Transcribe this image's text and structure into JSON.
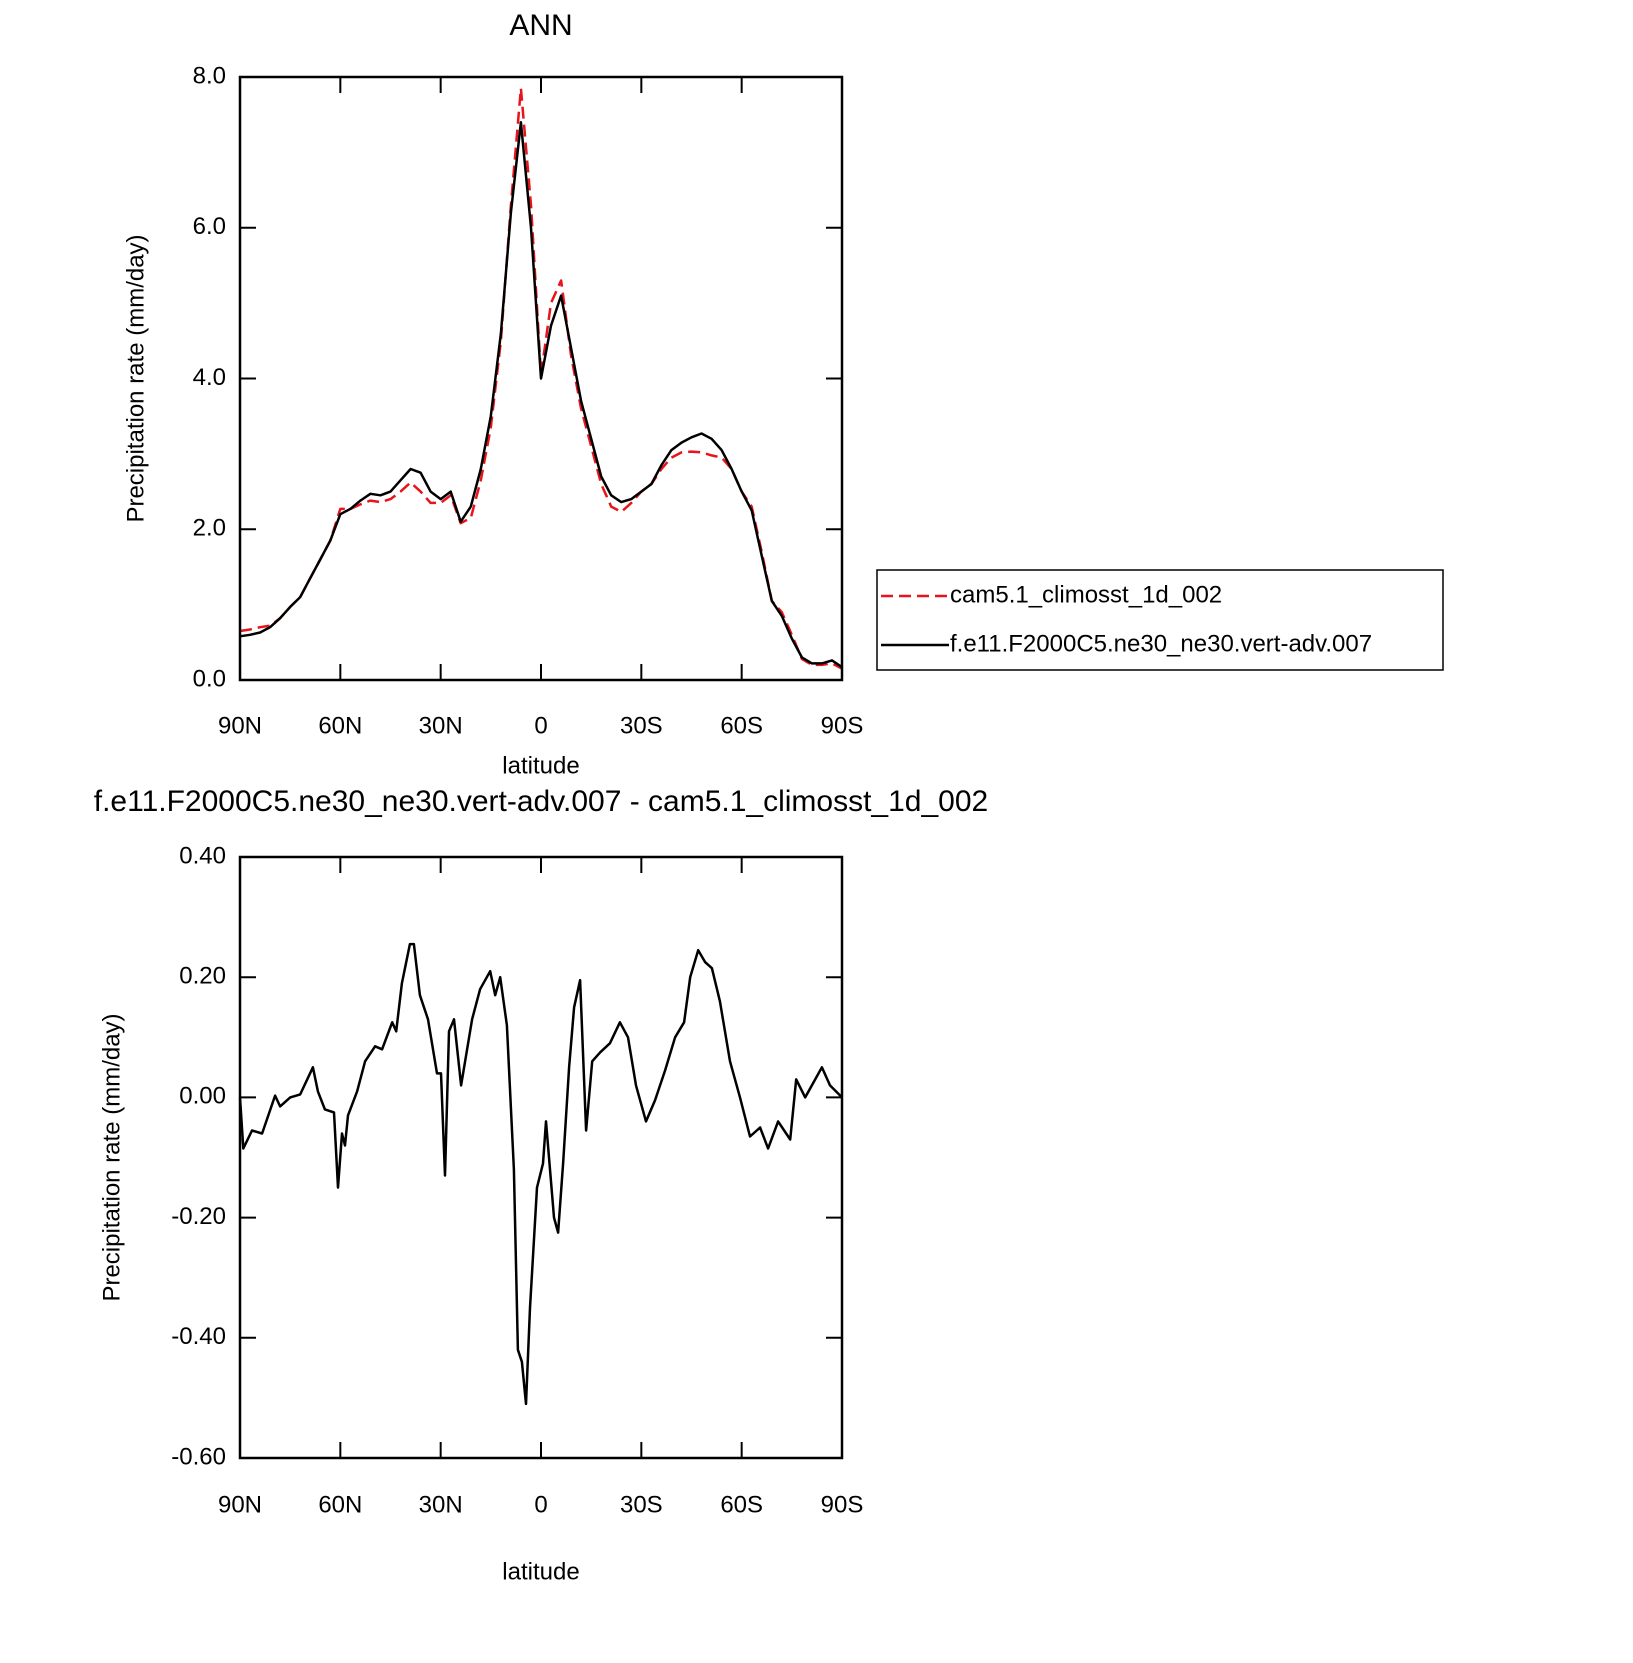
{
  "chart_data": [
    {
      "type": "line",
      "title": "ANN",
      "x_label": "latitude",
      "y_label": "Precipitation rate (mm/day)",
      "x": [
        90,
        87,
        84,
        81,
        78,
        75,
        72,
        69,
        66,
        63,
        60,
        57,
        54,
        51,
        48,
        45,
        42,
        39,
        36,
        33,
        30,
        27,
        24,
        21,
        18,
        15,
        12,
        9,
        6,
        3,
        0,
        -3,
        -6,
        -9,
        -12,
        -15,
        -18,
        -21,
        -24,
        -27,
        -30,
        -33,
        -36,
        -39,
        -42,
        -45,
        -48,
        -51,
        -54,
        -57,
        -60,
        -63,
        -66,
        -69,
        -72,
        -75,
        -78,
        -81,
        -84,
        -87,
        -90
      ],
      "series": [
        {
          "name": "cam5.1_climosst_1d_002",
          "color": "#e8141b",
          "linestyle": "dashed",
          "values": [
            0.65,
            0.67,
            0.7,
            0.72,
            0.82,
            0.97,
            1.1,
            1.35,
            1.6,
            1.85,
            2.27,
            2.27,
            2.33,
            2.38,
            2.36,
            2.4,
            2.5,
            2.62,
            2.5,
            2.35,
            2.35,
            2.45,
            2.08,
            2.15,
            2.65,
            3.35,
            4.5,
            6.3,
            7.85,
            6.3,
            4.05,
            5.0,
            5.3,
            4.3,
            3.6,
            3.1,
            2.6,
            2.3,
            2.23,
            2.35,
            2.5,
            2.6,
            2.8,
            2.95,
            3.02,
            3.03,
            3.02,
            2.98,
            2.95,
            2.8,
            2.5,
            2.3,
            1.7,
            1.05,
            0.9,
            0.6,
            0.28,
            0.2,
            0.2,
            0.22,
            0.15
          ]
        },
        {
          "name": "f.e11.F2000C5.ne30_ne30.vert-adv.007",
          "color": "#000000",
          "linestyle": "solid",
          "values": [
            0.58,
            0.6,
            0.63,
            0.7,
            0.82,
            0.97,
            1.1,
            1.35,
            1.6,
            1.85,
            2.2,
            2.27,
            2.38,
            2.47,
            2.45,
            2.5,
            2.65,
            2.8,
            2.75,
            2.5,
            2.4,
            2.5,
            2.1,
            2.3,
            2.8,
            3.5,
            4.6,
            6.2,
            7.4,
            6.0,
            4.0,
            4.7,
            5.1,
            4.4,
            3.7,
            3.2,
            2.7,
            2.45,
            2.36,
            2.4,
            2.5,
            2.6,
            2.85,
            3.05,
            3.15,
            3.22,
            3.27,
            3.2,
            3.05,
            2.8,
            2.5,
            2.25,
            1.65,
            1.05,
            0.85,
            0.55,
            0.3,
            0.22,
            0.22,
            0.26,
            0.17
          ]
        }
      ],
      "xlim": [
        90,
        -90
      ],
      "xticks": [
        {
          "value": 90,
          "label": "90N"
        },
        {
          "value": 60,
          "label": "60N"
        },
        {
          "value": 30,
          "label": "30N"
        },
        0,
        {
          "value": -30,
          "label": "30S"
        },
        {
          "value": -60,
          "label": "60S"
        },
        {
          "value": -90,
          "label": "90S"
        }
      ],
      "ylim": [
        0,
        8
      ],
      "yticks": [
        {
          "value": 0,
          "label": "0.0"
        },
        {
          "value": 2,
          "label": "2.0"
        },
        {
          "value": 4,
          "label": "4.0"
        },
        {
          "value": 6,
          "label": "6.0"
        },
        {
          "value": 8,
          "label": "8.0"
        }
      ],
      "grid": false,
      "legend": "outside right"
    },
    {
      "type": "line",
      "title": "f.e11.F2000C5.ne30_ne30.vert-adv.007 - cam5.1_climosst_1d_002",
      "x_label": "latitude",
      "y_label": "Precipitation rate (mm/day)",
      "x": [
        90,
        89,
        86.4,
        83.4,
        79.5,
        78,
        75,
        72,
        68.2,
        66.7,
        64.6,
        61.9,
        60.7,
        59.5,
        58.6,
        57.7,
        55,
        52.6,
        49.6,
        47.5,
        44.5,
        43.3,
        41.6,
        39.2,
        38,
        36.2,
        33.8,
        31.1,
        29.9,
        28.7,
        27.5,
        26,
        23.9,
        20.6,
        18.2,
        15.2,
        13.7,
        12.2,
        10.2,
        8.1,
        6.9,
        5.7,
        4.5,
        3.3,
        1.2,
        -0.6,
        -1.5,
        -2.7,
        -3.9,
        -5.1,
        -6.6,
        -8.4,
        -9.9,
        -11.7,
        -13.5,
        -15.3,
        -17.7,
        -20.6,
        -23.6,
        -26,
        -28.4,
        -31.4,
        -34.1,
        -37.1,
        -40.1,
        -42.8,
        -44.6,
        -47,
        -49.1,
        -51.1,
        -53.5,
        -56.5,
        -59.5,
        -62.5,
        -65.5,
        -67.9,
        -70.9,
        -74.5,
        -76.3,
        -79,
        -82,
        -84,
        -86.4,
        -90
      ],
      "series": [
        {
          "color": "#000000",
          "linestyle": "solid",
          "values": [
            0,
            -0.085,
            -0.055,
            -0.06,
            0.003,
            -0.015,
            0.0,
            0.005,
            0.05,
            0.01,
            -0.02,
            -0.025,
            -0.15,
            -0.06,
            -0.08,
            -0.03,
            0.01,
            0.06,
            0.085,
            0.08,
            0.125,
            0.11,
            0.19,
            0.255,
            0.255,
            0.17,
            0.13,
            0.04,
            0.04,
            -0.13,
            0.11,
            0.13,
            0.02,
            0.13,
            0.18,
            0.21,
            0.17,
            0.2,
            0.12,
            -0.12,
            -0.42,
            -0.44,
            -0.51,
            -0.35,
            -0.15,
            -0.11,
            -0.04,
            -0.12,
            -0.2,
            -0.225,
            -0.11,
            0.05,
            0.15,
            0.195,
            -0.055,
            0.06,
            0.075,
            0.09,
            0.125,
            0.1,
            0.02,
            -0.04,
            -0.005,
            0.045,
            0.1,
            0.125,
            0.2,
            0.245,
            0.225,
            0.215,
            0.16,
            0.06,
            0.0,
            -0.065,
            -0.05,
            -0.085,
            -0.04,
            -0.07,
            0.03,
            0.0,
            0.03,
            0.05,
            0.02,
            0.0
          ]
        }
      ],
      "xlim": [
        90,
        -90
      ],
      "xticks": [
        {
          "value": 90,
          "label": "90N"
        },
        {
          "value": 60,
          "label": "60N"
        },
        {
          "value": 30,
          "label": "30N"
        },
        0,
        {
          "value": -30,
          "label": "30S"
        },
        {
          "value": -60,
          "label": "60S"
        },
        {
          "value": -90,
          "label": "90S"
        }
      ],
      "ylim": [
        -0.6,
        0.4
      ],
      "yticks": [
        {
          "value": -0.6,
          "label": "-0.60"
        },
        {
          "value": -0.4,
          "label": "-0.40"
        },
        {
          "value": -0.2,
          "label": "-0.20"
        },
        {
          "value": 0,
          "label": "0.00"
        },
        {
          "value": 0.2,
          "label": "0.20"
        },
        {
          "value": 0.4,
          "label": "0.40"
        }
      ],
      "grid": false
    }
  ]
}
